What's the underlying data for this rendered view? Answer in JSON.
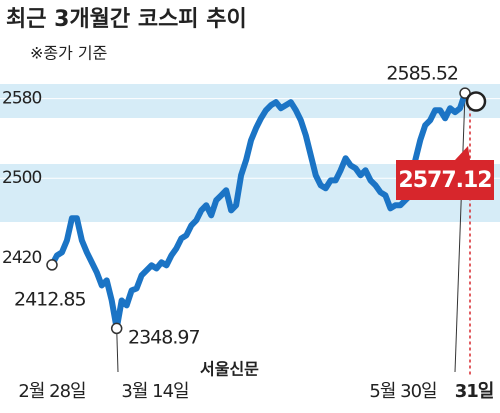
{
  "chart_data": {
    "type": "line",
    "title": "최근 3개월간 코스피 추이",
    "subtitle": "※종가 기준",
    "source": "서울신문",
    "categories": [
      "2월 28일",
      null,
      null,
      null,
      null,
      null,
      null,
      null,
      null,
      null,
      null,
      null,
      null,
      "3월 14일",
      null,
      null,
      null,
      null,
      null,
      null,
      null,
      null,
      null,
      null,
      null,
      null,
      null,
      null,
      null,
      null,
      null,
      null,
      null,
      null,
      null,
      null,
      null,
      null,
      null,
      null,
      null,
      null,
      null,
      null,
      null,
      null,
      null,
      null,
      null,
      null,
      null,
      null,
      null,
      null,
      null,
      null,
      null,
      null,
      null,
      null,
      null,
      null,
      null,
      null,
      null,
      null,
      null,
      null,
      null,
      null,
      null,
      null,
      null,
      null,
      null,
      null,
      null,
      null,
      null,
      null,
      null,
      null,
      null,
      "5월 30일",
      "31일"
    ],
    "values": [
      2412.85,
      2422.4,
      2425.5,
      2437.5,
      2459.7,
      2459.7,
      2437.5,
      2425.5,
      2415.4,
      2405.3,
      2392.2,
      2397.3,
      2377.1,
      2348.97,
      2377.1,
      2372.1,
      2387.2,
      2389.2,
      2402.3,
      2407.3,
      2412.4,
      2409.3,
      2415.4,
      2412.4,
      2422.4,
      2429.5,
      2439.5,
      2442.6,
      2452.6,
      2457.7,
      2467.7,
      2472.8,
      2462.7,
      2477.8,
      2482.8,
      2487.9,
      2467.7,
      2472.8,
      2503,
      2518.1,
      2538.2,
      2550.3,
      2560.3,
      2568.4,
      2573.4,
      2576.5,
      2570.4,
      2573.4,
      2576.5,
      2568.4,
      2558.3,
      2543.2,
      2523.1,
      2503,
      2492.9,
      2489.9,
      2497.9,
      2497.9,
      2508,
      2520.1,
      2513,
      2510,
      2503,
      2508,
      2497.9,
      2492.9,
      2485.9,
      2482.8,
      2469.7,
      2472.8,
      2472.8,
      2477.8,
      2482.8,
      2518.1,
      2538.2,
      2553.3,
      2558.3,
      2568.4,
      2568.4,
      2560.3,
      2570.4,
      2566.4,
      2570.4,
      2585.52,
      2577.12
    ],
    "color": "#1b74c5",
    "highlight_color": "#d7262c",
    "ylim": [
      2277,
      2639
    ],
    "yticks": [
      2420,
      2500,
      2580
    ],
    "grid": true
  }
}
